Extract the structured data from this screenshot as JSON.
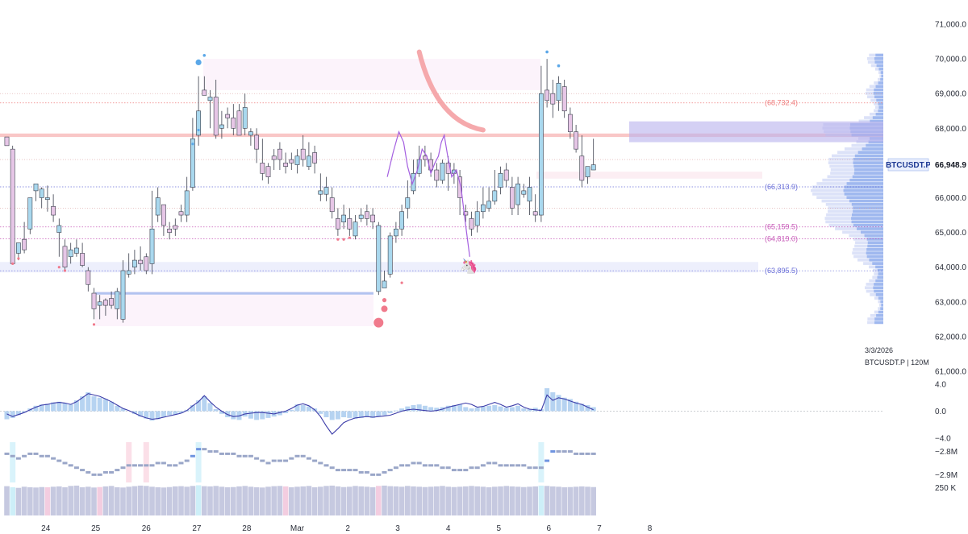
{
  "chart_data": {
    "type": "candlestick",
    "symbol": "BTCUSDT.P",
    "timeframe_label": "BTCUSDT.P | 120M",
    "date_label": "3/3/2026",
    "last_price": 66948.9,
    "last_price_label": "66,948.9",
    "price_axis": {
      "ylim": [
        61000,
        71000
      ],
      "ticks": [
        {
          "value": 71000,
          "label": "71,000.0"
        },
        {
          "value": 70000,
          "label": "70,000.0"
        },
        {
          "value": 69000,
          "label": "69,000.0"
        },
        {
          "value": 68000,
          "label": "68,000.0"
        },
        {
          "value": 67000,
          "label": "67,000.0"
        },
        {
          "value": 66000,
          "label": "66,000.0"
        },
        {
          "value": 65000,
          "label": "65,000.0"
        },
        {
          "value": 64000,
          "label": "64,000.0"
        },
        {
          "value": 63000,
          "label": "63,000.0"
        },
        {
          "value": 62000,
          "label": "62,000.0"
        },
        {
          "value": 61000,
          "label": "61,000.0"
        }
      ]
    },
    "x_axis": {
      "range": [
        0,
        103.6
      ],
      "ticks": [
        {
          "value": 6.7,
          "label": "24"
        },
        {
          "value": 15.3,
          "label": "25"
        },
        {
          "value": 24.0,
          "label": "26"
        },
        {
          "value": 32.7,
          "label": "27"
        },
        {
          "value": 41.3,
          "label": "28"
        },
        {
          "value": 50.0,
          "label": "Mar"
        },
        {
          "value": 58.7,
          "label": "2"
        },
        {
          "value": 67.3,
          "label": "3"
        },
        {
          "value": 76.0,
          "label": "4"
        },
        {
          "value": 84.7,
          "label": "5"
        },
        {
          "value": 93.3,
          "label": "6"
        },
        {
          "value": 102.0,
          "label": "7"
        },
        {
          "value": 110.7,
          "label": "8"
        }
      ]
    },
    "levels": [
      {
        "value": 68732.4,
        "label": "(68,732.4)",
        "color": "#ef7d7d"
      },
      {
        "value": 66313.9,
        "label": "(66,313.9)",
        "color": "#6a6fd8"
      },
      {
        "value": 65159.5,
        "label": "(65,159.5)",
        "color": "#c75ab8"
      },
      {
        "value": 64819.0,
        "label": "(64,819.0)",
        "color": "#c75ab8"
      },
      {
        "value": 63895.5,
        "label": "(63,895.5)",
        "color": "#6a6fd8"
      }
    ],
    "candles": [
      [
        67750,
        67500,
        67600,
        67600
      ],
      [
        67400,
        64100,
        67500,
        64200
      ],
      [
        64400,
        64700,
        64300,
        64200
      ],
      [
        64800,
        64500,
        65300,
        64400
      ],
      [
        65100,
        66000,
        65250,
        64950
      ],
      [
        66200,
        66400,
        66350,
        65900
      ],
      [
        66000,
        66250,
        66300,
        65700
      ],
      [
        65950,
        66000,
        66350,
        65600
      ],
      [
        65750,
        65500,
        66100,
        65300
      ],
      [
        65000,
        65200,
        65400,
        64300
      ],
      [
        64600,
        64000,
        64800,
        63900
      ],
      [
        64300,
        64500,
        64700,
        64100
      ],
      [
        64400,
        64550,
        64800,
        64300
      ],
      [
        64400,
        64050,
        64700,
        64000
      ],
      [
        63900,
        63500,
        64000,
        63300
      ],
      [
        63250,
        62800,
        63400,
        62500
      ],
      [
        62900,
        63000,
        63200,
        62500
      ],
      [
        63050,
        62900,
        63100,
        62600
      ],
      [
        63100,
        62900,
        63300,
        62800
      ],
      [
        62800,
        63300,
        63400,
        62500
      ],
      [
        62500,
        63900,
        64200,
        62400
      ],
      [
        63800,
        63900,
        64400,
        63700
      ],
      [
        64000,
        64200,
        64500,
        63800
      ],
      [
        64200,
        64100,
        64600,
        63900
      ],
      [
        64300,
        63900,
        64400,
        63800
      ],
      [
        64100,
        65100,
        66200,
        63800
      ],
      [
        65500,
        66000,
        66300,
        65300
      ],
      [
        65800,
        65200,
        65700,
        64900
      ],
      [
        65100,
        65000,
        65300,
        64800
      ],
      [
        65200,
        65100,
        65400,
        64900
      ],
      [
        65600,
        65500,
        65800,
        65300
      ],
      [
        65500,
        66200,
        66600,
        65300
      ],
      [
        66300,
        67700,
        68300,
        66200
      ],
      [
        67800,
        68500,
        69500,
        67500
      ],
      [
        69100,
        68950,
        69500,
        69000
      ],
      [
        68800,
        68900,
        69100,
        68000
      ],
      [
        68900,
        67800,
        69400,
        67700
      ],
      [
        68000,
        68100,
        68500,
        67700
      ],
      [
        68400,
        68300,
        68600,
        68000
      ],
      [
        68300,
        68000,
        68700,
        67800
      ],
      [
        68500,
        67800,
        68700,
        67800
      ],
      [
        68000,
        68600,
        69000,
        67800
      ],
      [
        67800,
        67900,
        68000,
        67500
      ],
      [
        67800,
        67400,
        68000,
        67000
      ],
      [
        67000,
        66700,
        67700,
        66500
      ],
      [
        66900,
        66600,
        67000,
        66400
      ],
      [
        67200,
        67100,
        67400,
        66800
      ],
      [
        67400,
        67100,
        67600,
        66800
      ],
      [
        67000,
        66900,
        67300,
        66700
      ],
      [
        67100,
        67000,
        67300,
        66800
      ],
      [
        66950,
        67200,
        67400,
        66700
      ],
      [
        67400,
        67100,
        67800,
        66900
      ],
      [
        66900,
        67200,
        67600,
        66800
      ],
      [
        67300,
        67000,
        67500,
        66700
      ],
      [
        66100,
        66200,
        66700,
        65900
      ],
      [
        66100,
        66300,
        66600,
        65900
      ],
      [
        66000,
        65600,
        66300,
        65400
      ],
      [
        65400,
        65100,
        65700,
        64900
      ],
      [
        65300,
        65500,
        65800,
        65100
      ],
      [
        65400,
        65100,
        65700,
        64900
      ],
      [
        64900,
        65300,
        65500,
        64800
      ],
      [
        65400,
        65500,
        65700,
        65300
      ],
      [
        65600,
        65400,
        65800,
        65200
      ],
      [
        65500,
        65300,
        65700,
        65100
      ],
      [
        63300,
        65200,
        65300,
        63200
      ],
      [
        63400,
        63600,
        63900,
        63400
      ],
      [
        63800,
        64900,
        65000,
        63700
      ],
      [
        64900,
        65100,
        65300,
        64700
      ],
      [
        65100,
        65600,
        65800,
        64900
      ],
      [
        65700,
        66000,
        66500,
        65400
      ],
      [
        66200,
        66700,
        67100,
        66100
      ],
      [
        66700,
        67100,
        67500,
        66600
      ],
      [
        67200,
        67100,
        67500,
        66900
      ],
      [
        67100,
        66800,
        67300,
        66600
      ],
      [
        66800,
        66500,
        67000,
        66300
      ],
      [
        66500,
        67000,
        67100,
        66400
      ],
      [
        67000,
        66700,
        67200,
        66200
      ],
      [
        66700,
        66800,
        67000,
        66400
      ],
      [
        66600,
        66000,
        66800,
        65500
      ],
      [
        65600,
        65500,
        65800,
        65300
      ],
      [
        65400,
        65100,
        65600,
        64900
      ],
      [
        65200,
        65600,
        65900,
        65000
      ],
      [
        65600,
        65800,
        66300,
        65400
      ],
      [
        65700,
        65900,
        66300,
        65600
      ],
      [
        65900,
        66200,
        66800,
        65800
      ],
      [
        66300,
        66700,
        66900,
        66100
      ],
      [
        66800,
        66500,
        67000,
        66300
      ],
      [
        66300,
        65700,
        66600,
        65500
      ],
      [
        65800,
        66400,
        66600,
        65500
      ],
      [
        66100,
        66200,
        66400,
        66000
      ],
      [
        65900,
        66300,
        66600,
        65500
      ],
      [
        65600,
        65500,
        66100,
        65300
      ],
      [
        65500,
        69000,
        69800,
        65300
      ],
      [
        69100,
        68800,
        70000,
        68600
      ],
      [
        69000,
        68700,
        69400,
        68300
      ],
      [
        68800,
        69300,
        69500,
        68500
      ],
      [
        69200,
        68500,
        69400,
        68300
      ],
      [
        68400,
        67900,
        68600,
        67700
      ],
      [
        67900,
        67400,
        68100,
        67300
      ],
      [
        67200,
        66500,
        67800,
        66300
      ],
      [
        66600,
        66900,
        66900,
        66400
      ],
      [
        66800,
        66950,
        67700,
        66800
      ]
    ],
    "projection": [
      [
        65.5,
        66600
      ],
      [
        66.5,
        67300
      ],
      [
        67.5,
        67900
      ],
      [
        68.3,
        67600
      ],
      [
        69.0,
        66900
      ],
      [
        69.8,
        66400
      ],
      [
        70.7,
        66800
      ],
      [
        71.5,
        67400
      ],
      [
        72.3,
        67200
      ],
      [
        73.0,
        66700
      ],
      [
        73.7,
        67000
      ],
      [
        74.3,
        67200
      ],
      [
        74.8,
        67600
      ],
      [
        75.3,
        67800
      ],
      [
        75.9,
        67200
      ],
      [
        76.6,
        66600
      ],
      [
        77.4,
        66800
      ],
      [
        78.2,
        66300
      ],
      [
        79.0,
        65200
      ],
      [
        79.7,
        64300
      ]
    ],
    "oscillator": {
      "ticks": [
        {
          "value": 4.0,
          "label": "4.0"
        },
        {
          "value": 0.0,
          "label": "0.0"
        },
        {
          "value": -4.0,
          "label": "−4.0"
        }
      ],
      "ylim": [
        -4.0,
        4.0
      ],
      "bars": [
        -1.2,
        -1.0,
        -0.6,
        -0.2,
        0.4,
        0.8,
        1.0,
        1.1,
        1.3,
        1.4,
        1.2,
        1.0,
        1.6,
        2.2,
        2.8,
        2.2,
        2.0,
        1.8,
        1.4,
        0.8,
        0.4,
        0.0,
        -0.4,
        -0.8,
        -1.1,
        -1.4,
        -1.2,
        -0.9,
        -0.6,
        -0.5,
        -0.3,
        0.2,
        0.9,
        1.6,
        2.2,
        1.2,
        0.3,
        -0.4,
        -0.9,
        -1.2,
        -1.3,
        -0.8,
        -1.1,
        -1.3,
        -1.2,
        -1.0,
        -0.8,
        -0.6,
        -0.3,
        0.2,
        1.0,
        0.9,
        0.7,
        0.4,
        -0.4,
        -0.9,
        -1.3,
        -1.2,
        -0.9,
        -1.0,
        -1.1,
        -1.0,
        -0.8,
        -1.0,
        -0.8,
        -0.6,
        -0.3,
        0.1,
        0.4,
        0.7,
        0.9,
        1.0,
        0.8,
        0.6,
        0.5,
        0.6,
        0.8,
        0.9,
        1.0,
        0.6,
        0.4,
        0.5,
        0.7,
        0.8,
        0.9,
        0.7,
        0.5,
        0.6,
        0.8,
        0.4,
        0.3,
        0.5,
        0.3,
        3.4,
        2.8,
        2.4,
        2.0,
        1.8,
        1.4,
        1.1,
        0.9,
        0.6
      ],
      "line": [
        -0.4,
        -0.8,
        -0.5,
        -0.2,
        0.2,
        0.6,
        0.9,
        1.0,
        1.2,
        1.3,
        1.2,
        1.0,
        1.4,
        2.0,
        2.6,
        2.4,
        2.2,
        1.8,
        1.4,
        0.9,
        0.4,
        0.1,
        -0.3,
        -0.7,
        -1.0,
        -1.2,
        -1.1,
        -0.9,
        -0.7,
        -0.5,
        -0.3,
        0.1,
        0.8,
        1.4,
        2.3,
        1.4,
        0.6,
        0.0,
        -0.5,
        -0.8,
        -0.7,
        -0.4,
        -0.3,
        -0.2,
        -0.2,
        -0.3,
        -0.4,
        -0.2,
        0.0,
        0.4,
        0.9,
        1.1,
        0.8,
        0.2,
        -0.8,
        -2.2,
        -3.4,
        -2.6,
        -1.7,
        -1.3,
        -1.0,
        -0.9,
        -0.8,
        -0.9,
        -0.8,
        -0.7,
        -0.6,
        -0.3,
        0.0,
        0.2,
        0.3,
        0.2,
        0.1,
        0.0,
        0.1,
        0.3,
        0.6,
        0.8,
        1.0,
        1.2,
        1.0,
        0.6,
        0.7,
        1.0,
        1.3,
        1.0,
        0.6,
        0.8,
        1.1,
        0.6,
        0.3,
        0.2,
        0.1,
        2.4,
        1.6,
        2.0,
        1.8,
        1.5,
        1.2,
        1.0,
        0.6,
        0.2
      ]
    },
    "cvd": {
      "ticks": [
        {
          "value": -2.8,
          "label": "−2.8M"
        },
        {
          "value": -2.9,
          "label": "−2.9M"
        }
      ],
      "ylim": [
        -2.93,
        -2.76
      ],
      "values": [
        -2.81,
        -2.82,
        -2.83,
        -2.82,
        -2.81,
        -2.81,
        -2.82,
        -2.82,
        -2.83,
        -2.84,
        -2.85,
        -2.86,
        -2.87,
        -2.88,
        -2.89,
        -2.9,
        -2.9,
        -2.89,
        -2.89,
        -2.88,
        -2.87,
        -2.86,
        -2.86,
        -2.86,
        -2.86,
        -2.86,
        -2.85,
        -2.85,
        -2.86,
        -2.86,
        -2.85,
        -2.84,
        -2.82,
        -2.79,
        -2.79,
        -2.8,
        -2.8,
        -2.81,
        -2.81,
        -2.81,
        -2.82,
        -2.82,
        -2.82,
        -2.83,
        -2.84,
        -2.85,
        -2.84,
        -2.84,
        -2.84,
        -2.83,
        -2.82,
        -2.82,
        -2.83,
        -2.84,
        -2.85,
        -2.86,
        -2.87,
        -2.88,
        -2.88,
        -2.88,
        -2.88,
        -2.89,
        -2.89,
        -2.9,
        -2.9,
        -2.89,
        -2.88,
        -2.87,
        -2.86,
        -2.86,
        -2.85,
        -2.85,
        -2.86,
        -2.86,
        -2.86,
        -2.87,
        -2.87,
        -2.88,
        -2.88,
        -2.88,
        -2.87,
        -2.87,
        -2.86,
        -2.85,
        -2.85,
        -2.86,
        -2.86,
        -2.86,
        -2.86,
        -2.86,
        -2.87,
        -2.87,
        -2.87,
        -2.84,
        -2.8,
        -2.8,
        -2.8,
        -2.8,
        -2.81,
        -2.81,
        -2.81,
        -2.81
      ]
    },
    "volume": {
      "tick": {
        "value": 250,
        "label": "250 K"
      },
      "ylim": [
        0,
        300
      ],
      "values": [
        260,
        250,
        245,
        255,
        250,
        248,
        252,
        250,
        255,
        258,
        250,
        262,
        265,
        250,
        255,
        248,
        252,
        258,
        262,
        250,
        248,
        255,
        260,
        265,
        262,
        255,
        250,
        248,
        252,
        258,
        260,
        255,
        262,
        268,
        260,
        258,
        262,
        255,
        250,
        252,
        258,
        262,
        255,
        250,
        248,
        255,
        260,
        262,
        258,
        250,
        255,
        258,
        262,
        250,
        255,
        262,
        265,
        258,
        252,
        255,
        262,
        258,
        255,
        250,
        262,
        265,
        260,
        258,
        255,
        262,
        258,
        255,
        252,
        255,
        258,
        262,
        255,
        252,
        255,
        258,
        262,
        258,
        255,
        250,
        255,
        258,
        262,
        258,
        255,
        252,
        255,
        258,
        265,
        262,
        258,
        255,
        250,
        252,
        255,
        258,
        255,
        252
      ]
    }
  }
}
